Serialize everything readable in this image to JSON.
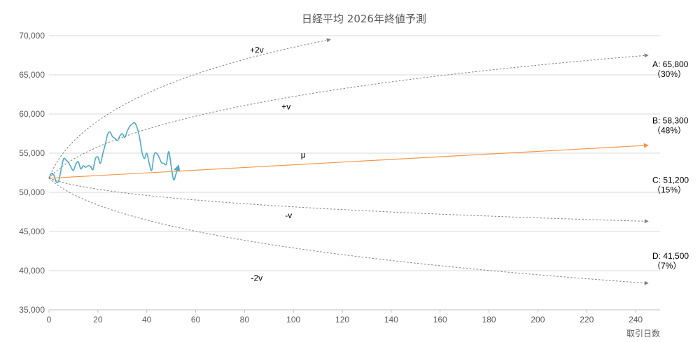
{
  "chart_data": {
    "type": "line",
    "title": "日経平均 2026年終値予測",
    "xlabel": "取引日数",
    "ylabel": "",
    "xlim": [
      0,
      250
    ],
    "ylim": [
      35000,
      70000
    ],
    "xticks": [
      0,
      20,
      40,
      60,
      80,
      100,
      120,
      140,
      160,
      180,
      200,
      220,
      240
    ],
    "yticks": [
      35000,
      40000,
      45000,
      50000,
      55000,
      60000,
      65000,
      70000
    ],
    "xtick_labels": [
      "0",
      "20",
      "40",
      "60",
      "80",
      "100",
      "120",
      "140",
      "160",
      "180",
      "200",
      "220",
      "240"
    ],
    "ytick_labels": [
      "35,000",
      "40,000",
      "45,000",
      "50,000",
      "55,000",
      "60,000",
      "65,000",
      "70,000"
    ],
    "grid": "horizontal",
    "series": [
      {
        "name": "",
        "color": "#4BACC6",
        "style": "solid",
        "points": [
          [
            0,
            51800
          ],
          [
            1,
            52400
          ],
          [
            2,
            52200
          ],
          [
            3,
            51300
          ],
          [
            4,
            51500
          ],
          [
            5,
            53000
          ],
          [
            6,
            54300
          ],
          [
            7,
            54100
          ],
          [
            8,
            53800
          ],
          [
            9,
            53200
          ],
          [
            10,
            52800
          ],
          [
            11,
            53600
          ],
          [
            12,
            53900
          ],
          [
            13,
            53000
          ],
          [
            14,
            53400
          ],
          [
            15,
            53200
          ],
          [
            16,
            53400
          ],
          [
            17,
            53300
          ],
          [
            18,
            52900
          ],
          [
            19,
            54300
          ],
          [
            20,
            54500
          ],
          [
            21,
            53700
          ],
          [
            22,
            54900
          ],
          [
            23,
            56100
          ],
          [
            24,
            57400
          ],
          [
            25,
            57700
          ],
          [
            26,
            57100
          ],
          [
            27,
            56900
          ],
          [
            28,
            56600
          ],
          [
            29,
            57200
          ],
          [
            30,
            57500
          ],
          [
            31,
            57000
          ],
          [
            32,
            57800
          ],
          [
            33,
            58400
          ],
          [
            34,
            58700
          ],
          [
            35,
            58900
          ],
          [
            36,
            58300
          ],
          [
            37,
            57100
          ],
          [
            38,
            55200
          ],
          [
            39,
            54300
          ],
          [
            40,
            55000
          ],
          [
            41,
            53700
          ],
          [
            42,
            52800
          ],
          [
            43,
            54800
          ],
          [
            44,
            55000
          ],
          [
            45,
            54500
          ],
          [
            46,
            53800
          ],
          [
            47,
            53700
          ],
          [
            48,
            53600
          ],
          [
            49,
            55200
          ],
          [
            50,
            53300
          ],
          [
            51,
            51600
          ],
          [
            52,
            52400
          ],
          [
            53,
            53400
          ]
        ]
      },
      {
        "name": "μ",
        "color": "#F79646",
        "style": "solid",
        "x": [
          0,
          245
        ],
        "y": [
          51800,
          56000
        ]
      },
      {
        "name": "+v",
        "color": "#808080",
        "style": "dashed",
        "x": [
          0,
          245
        ],
        "y": [
          51800,
          67500
        ]
      },
      {
        "name": "-v",
        "color": "#808080",
        "style": "dashed",
        "x": [
          0,
          245
        ],
        "y": [
          51800,
          46300
        ]
      },
      {
        "name": "+2v",
        "color": "#808080",
        "style": "dashed",
        "x": [
          0,
          115
        ],
        "y": [
          51800,
          69500
        ]
      },
      {
        "name": "-2v",
        "color": "#808080",
        "style": "dashed",
        "x": [
          0,
          245
        ],
        "y": [
          51800,
          38400
        ]
      }
    ],
    "annotations": [
      {
        "text": "+2v",
        "x": 85,
        "y": 67800
      },
      {
        "text": "+v",
        "x": 97,
        "y": 60600
      },
      {
        "text": "μ",
        "x": 104,
        "y": 54400
      },
      {
        "text": "-v",
        "x": 98,
        "y": 46700
      },
      {
        "text": "-2v",
        "x": 85,
        "y": 38700
      }
    ],
    "scenarios": [
      {
        "label": "A: 65,800",
        "prob": "（30%）",
        "y": 66000
      },
      {
        "label": "B: 58,300",
        "prob": "（48%）",
        "y": 58800
      },
      {
        "label": "C: 51,200",
        "prob": "（15%）",
        "y": 51200
      },
      {
        "label": "D: 41,500",
        "prob": "（7%）",
        "y": 41500
      }
    ]
  }
}
